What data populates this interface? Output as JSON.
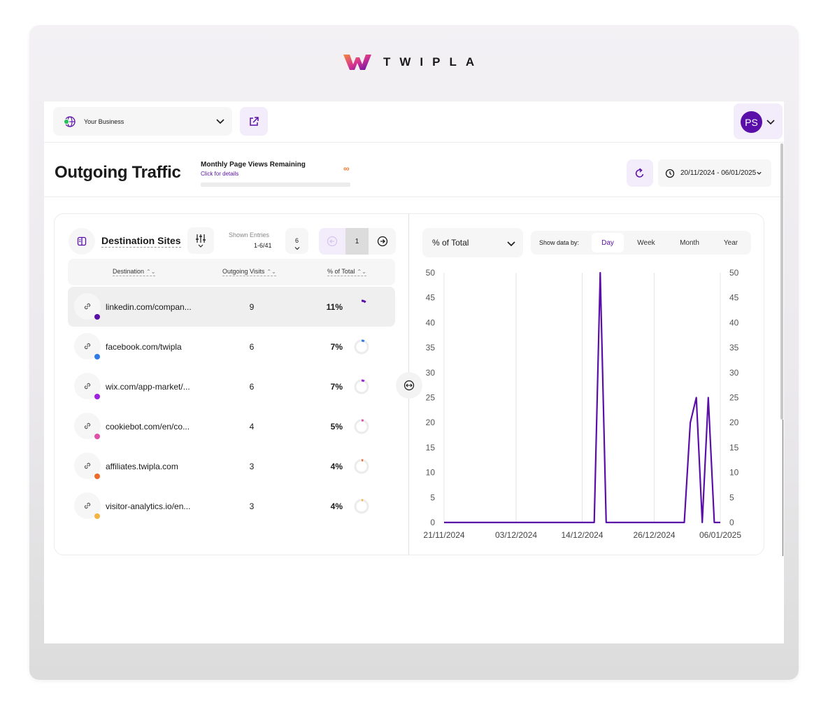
{
  "brand": {
    "name": "TWIPLA"
  },
  "topbar": {
    "business_label": "Your Business",
    "avatar_initials": "PS"
  },
  "header": {
    "title": "Outgoing Traffic",
    "pageviews_title": "Monthly Page Views Remaining",
    "pageviews_link": "Click for details",
    "pageviews_value": "∞",
    "date_range": "20/11/2024 - 06/01/2025"
  },
  "panel": {
    "title": "Destination Sites",
    "shown_entries_label": "Shown Entries",
    "shown_entries_value": "1-6/41",
    "entries_per_page": "6",
    "page": "1",
    "columns": [
      "Destination",
      "Outgoing Visits",
      "% of Total"
    ],
    "rows": [
      {
        "destination": "linkedin.com/compan...",
        "visits": "9",
        "pct": "11%",
        "pct_value": 11,
        "color": "#5a0fa8"
      },
      {
        "destination": "facebook.com/twipla",
        "visits": "6",
        "pct": "7%",
        "pct_value": 7,
        "color": "#2f7be6"
      },
      {
        "destination": "wix.com/app-market/...",
        "visits": "6",
        "pct": "7%",
        "pct_value": 7,
        "color": "#a020e0"
      },
      {
        "destination": "cookiebot.com/en/co...",
        "visits": "4",
        "pct": "5%",
        "pct_value": 5,
        "color": "#e24fa8"
      },
      {
        "destination": "affiliates.twipla.com",
        "visits": "3",
        "pct": "4%",
        "pct_value": 4,
        "color": "#ee6a2a"
      },
      {
        "destination": "visitor-analytics.io/en...",
        "visits": "3",
        "pct": "4%",
        "pct_value": 4,
        "color": "#f4b443"
      }
    ]
  },
  "chart_controls": {
    "metric": "% of Total",
    "show_by_label": "Show data by:",
    "options": [
      "Day",
      "Week",
      "Month",
      "Year"
    ],
    "selected": "Day"
  },
  "colors": {
    "accent": "#5a0fa8",
    "line": "#5a0fa8",
    "soft_accent": "#f3ecfa"
  },
  "chart_data": {
    "type": "line",
    "x_tick_labels": [
      "21/11/2024",
      "03/12/2024",
      "14/12/2024",
      "26/12/2024",
      "06/01/2025"
    ],
    "x_start": "2024-11-21",
    "x_end": "2025-01-06",
    "ylim": [
      0,
      50
    ],
    "y_ticks": [
      0,
      5,
      10,
      15,
      20,
      25,
      30,
      35,
      40,
      45,
      50
    ],
    "grid": "vertical",
    "series": [
      {
        "color": "#5a0fa8",
        "points": [
          {
            "x": "2024-11-21",
            "y": 0
          },
          {
            "x": "2024-12-16",
            "y": 0
          },
          {
            "x": "2024-12-17",
            "y": 50
          },
          {
            "x": "2024-12-18",
            "y": 0
          },
          {
            "x": "2024-12-31",
            "y": 0
          },
          {
            "x": "2025-01-01",
            "y": 20
          },
          {
            "x": "2025-01-02",
            "y": 25
          },
          {
            "x": "2025-01-03",
            "y": 0
          },
          {
            "x": "2025-01-04",
            "y": 25
          },
          {
            "x": "2025-01-05",
            "y": 0
          },
          {
            "x": "2025-01-06",
            "y": 0
          }
        ]
      }
    ]
  }
}
